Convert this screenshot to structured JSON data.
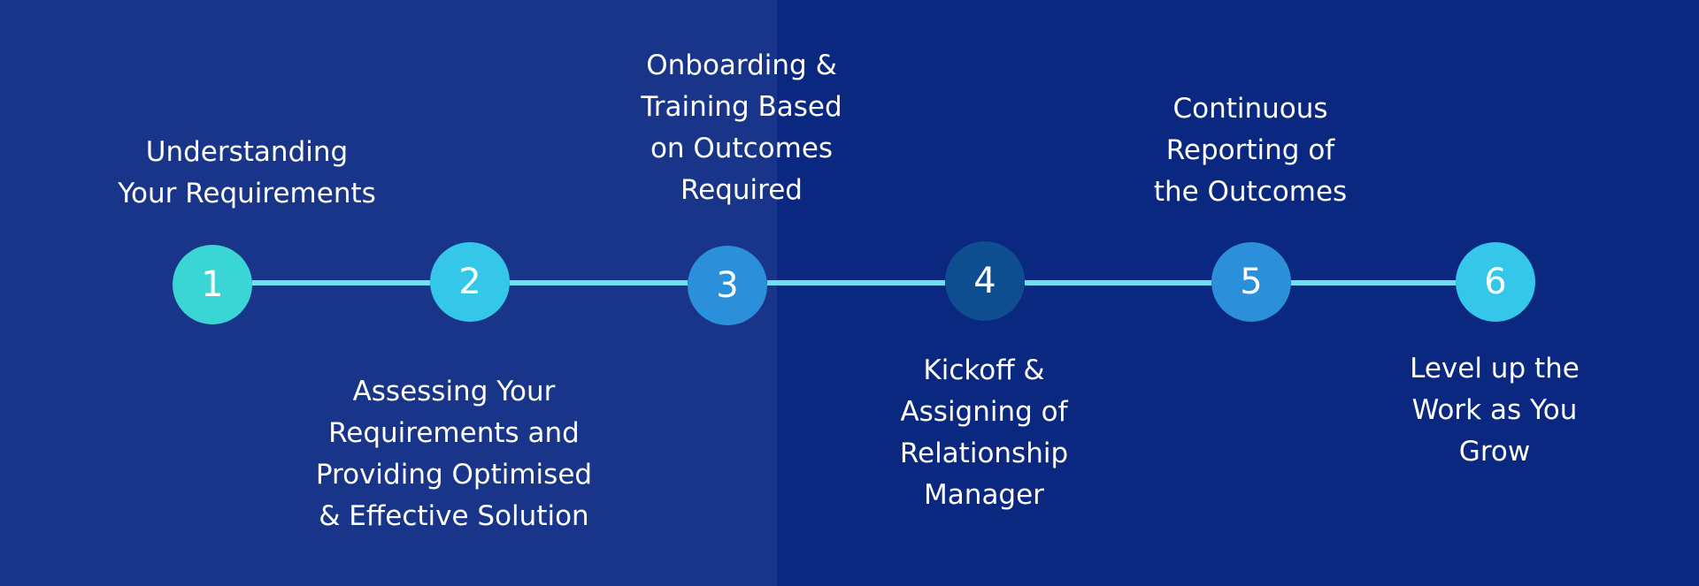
{
  "colors": {
    "background_left": "#193589",
    "background_right": "#0a2880",
    "connector": "#6fe0f2"
  },
  "steps": [
    {
      "number": "1",
      "color": "#3ad6d6",
      "label_lines": [
        "Understanding",
        "Your Requirements"
      ]
    },
    {
      "number": "2",
      "color": "#34c7ea",
      "label_lines": [
        "Assessing Your",
        "Requirements and",
        "Providing Optimised",
        "& Effective Solution"
      ]
    },
    {
      "number": "3",
      "color": "#2b90d9",
      "label_lines": [
        "Onboarding &",
        "Training Based",
        "on Outcomes",
        "Required"
      ]
    },
    {
      "number": "4",
      "color": "#0e4d8f",
      "label_lines": [
        "Kickoff &",
        "Assigning of",
        "Relationship",
        "Manager"
      ]
    },
    {
      "number": "5",
      "color": "#2b90d9",
      "label_lines": [
        "Continuous",
        "Reporting of",
        "the Outcomes"
      ]
    },
    {
      "number": "6",
      "color": "#34c7ea",
      "label_lines": [
        "Level up the",
        "Work as You",
        "Grow"
      ]
    }
  ]
}
